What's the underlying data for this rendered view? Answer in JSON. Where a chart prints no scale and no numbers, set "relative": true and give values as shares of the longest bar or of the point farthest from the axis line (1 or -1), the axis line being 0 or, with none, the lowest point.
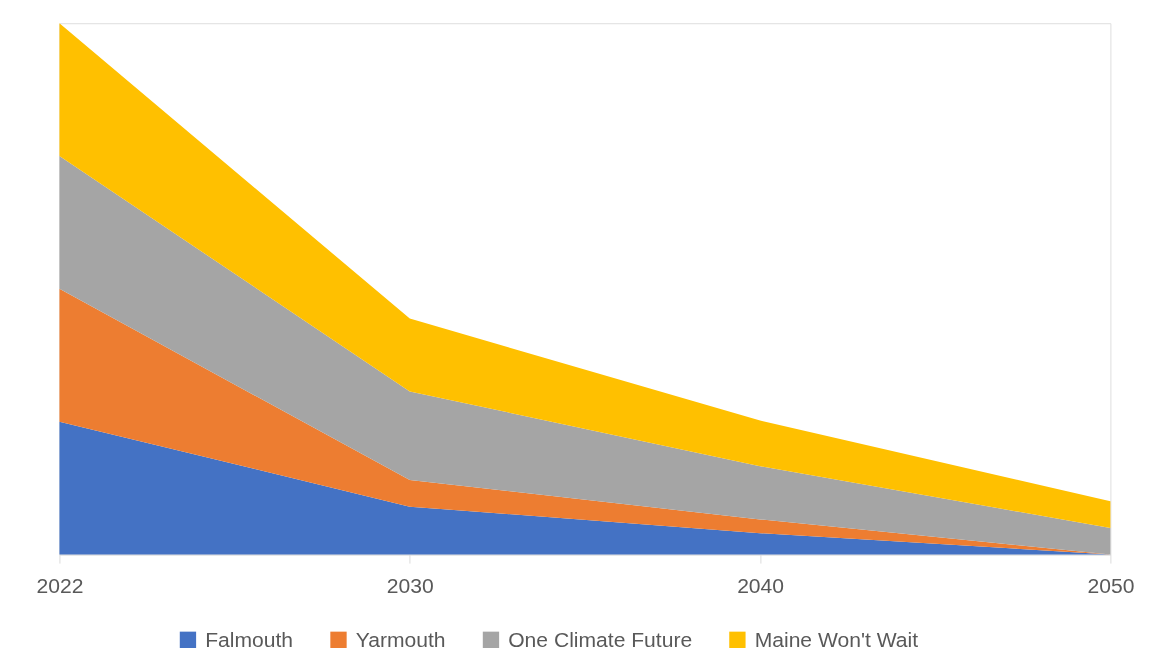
{
  "chart_data": {
    "type": "area",
    "categories": [
      "2022",
      "2030",
      "2040",
      "2050"
    ],
    "stacked": true,
    "relative": true,
    "legend": "bottom",
    "series": [
      {
        "name": "Falmouth",
        "color": "#4472c4",
        "values": [
          0.25,
          0.09,
          0.04,
          0
        ]
      },
      {
        "name": "Yarmouth",
        "color": "#ed7d31",
        "values": [
          0.25,
          0.05,
          0.026,
          0
        ]
      },
      {
        "name": "One Climate Future",
        "color": "#a5a5a5",
        "values": [
          0.25,
          0.167,
          0.1,
          0.05
        ]
      },
      {
        "name": "Maine Won't Wait",
        "color": "#ffc000",
        "values": [
          0.25,
          0.137,
          0.086,
          0.05
        ]
      }
    ]
  }
}
